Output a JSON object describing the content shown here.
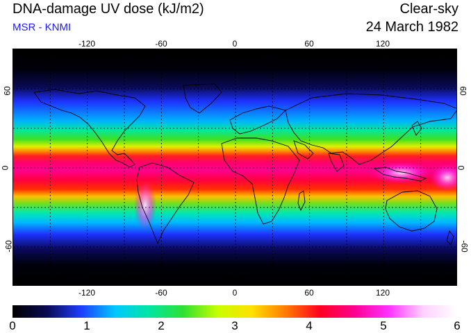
{
  "header": {
    "title": "DNA-damage UV dose (kJ/m2)",
    "source": "MSR - KNMI",
    "condition": "Clear-sky",
    "date": "24 March 1982"
  },
  "map": {
    "lon_ticks": [
      "-120",
      "-60",
      "0",
      "60",
      "120"
    ],
    "lat_ticks": [
      "60",
      "0",
      "-60"
    ],
    "grid_lon_step": 30,
    "grid_lat_step": 30,
    "colors": {
      "frame": "#000000",
      "grid": "#000000",
      "coast": "#000000"
    }
  },
  "colorbar": {
    "labels": [
      "0",
      "1",
      "2",
      "3",
      "4",
      "5",
      "6"
    ],
    "min": 0,
    "max": 6,
    "stops": [
      "#000000",
      "#0a0a50",
      "#1e3cff",
      "#00c8ff",
      "#00e6a0",
      "#30e030",
      "#c8ff00",
      "#ffe000",
      "#ff7a00",
      "#ff0020",
      "#ff0090",
      "#ff30ff",
      "#ffd0ff",
      "#ffffff"
    ]
  }
}
